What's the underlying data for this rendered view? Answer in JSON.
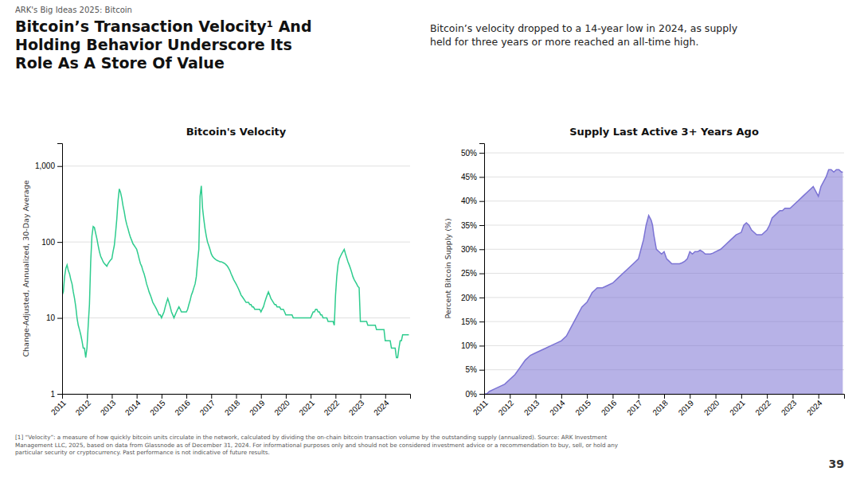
{
  "title": "Bitcoin’s Transaction Velocity¹ And\nHolding Behavior Underscore Its\nRole As A Store Of Value",
  "subtitle": "Bitcoin’s velocity dropped to a 14-year low in 2024, as supply\nheld for three years or more reached an all-time high.",
  "annotations": [
    "ARK's Big Ideas 2025: Bitcoin",
    "[1] “Velocity”: a measure of how quickly bitcoin units circulate in the network, calculated by dividing the on-chain bitcoin transaction volume by the outstanding supply (annualized). Source: ARK Investment\nManagement LLC, 2025, based on data from Glassnode as of December 31, 2024. For informational purposes only and should not be considered investment advice or a recommendation to buy, sell, or hold any\nparticular security or cryptocurrency. Past performance is not indicative of future results.",
    "39"
  ],
  "chart_data": [
    {
      "type": "line",
      "title": "Bitcoin's Velocity",
      "y_label": "Change-Adjusted, Annualized, 30-Day Average",
      "color": "#2ecc8e",
      "log": "y",
      "grid": true,
      "xlim": [
        2011,
        2025
      ],
      "xticks": [
        2011,
        2012,
        2013,
        2014,
        2015,
        2016,
        2017,
        2018,
        2019,
        2020,
        2021,
        2022,
        2023,
        2024
      ],
      "ylim": [
        1,
        2000
      ],
      "yticks": [
        1,
        10,
        100,
        {
          "value": 1000,
          "label": "1,000"
        }
      ],
      "x": [
        2011.0,
        2011.05,
        2011.1,
        2011.15,
        2011.2,
        2011.25,
        2011.3,
        2011.35,
        2011.4,
        2011.45,
        2011.5,
        2011.55,
        2011.6,
        2011.65,
        2011.7,
        2011.75,
        2011.8,
        2011.85,
        2011.9,
        2011.95,
        2012.0,
        2012.05,
        2012.1,
        2012.15,
        2012.2,
        2012.25,
        2012.3,
        2012.35,
        2012.4,
        2012.45,
        2012.5,
        2012.55,
        2012.6,
        2012.65,
        2012.7,
        2012.75,
        2012.8,
        2012.85,
        2012.9,
        2012.95,
        2013.0,
        2013.05,
        2013.1,
        2013.15,
        2013.2,
        2013.25,
        2013.3,
        2013.35,
        2013.4,
        2013.45,
        2013.5,
        2013.55,
        2013.6,
        2013.65,
        2013.7,
        2013.75,
        2013.8,
        2013.85,
        2013.9,
        2013.95,
        2014.0,
        2014.05,
        2014.1,
        2014.15,
        2014.2,
        2014.25,
        2014.3,
        2014.35,
        2014.4,
        2014.45,
        2014.5,
        2014.55,
        2014.6,
        2014.65,
        2014.7,
        2014.75,
        2014.8,
        2014.85,
        2014.9,
        2014.95,
        2015.0,
        2015.05,
        2015.1,
        2015.15,
        2015.2,
        2015.25,
        2015.3,
        2015.35,
        2015.4,
        2015.45,
        2015.5,
        2015.55,
        2015.6,
        2015.65,
        2015.7,
        2015.75,
        2015.8,
        2015.85,
        2015.9,
        2015.95,
        2016.0,
        2016.05,
        2016.1,
        2016.15,
        2016.2,
        2016.25,
        2016.3,
        2016.35,
        2016.4,
        2016.45,
        2016.5,
        2016.55,
        2016.6,
        2016.65,
        2016.7,
        2016.75,
        2016.8,
        2016.85,
        2016.9,
        2016.95,
        2017.0,
        2017.05,
        2017.1,
        2017.15,
        2017.2,
        2017.25,
        2017.3,
        2017.35,
        2017.4,
        2017.45,
        2017.5,
        2017.55,
        2017.6,
        2017.65,
        2017.7,
        2017.75,
        2017.8,
        2017.85,
        2017.9,
        2017.95,
        2018.0,
        2018.05,
        2018.1,
        2018.15,
        2018.2,
        2018.25,
        2018.3,
        2018.35,
        2018.4,
        2018.45,
        2018.5,
        2018.55,
        2018.6,
        2018.65,
        2018.7,
        2018.75,
        2018.8,
        2018.85,
        2018.9,
        2018.95,
        2019.0,
        2019.05,
        2019.1,
        2019.15,
        2019.2,
        2019.25,
        2019.3,
        2019.35,
        2019.4,
        2019.45,
        2019.5,
        2019.55,
        2019.6,
        2019.65,
        2019.7,
        2019.75,
        2019.8,
        2019.85,
        2019.9,
        2019.95,
        2020.0,
        2020.05,
        2020.1,
        2020.15,
        2020.2,
        2020.25,
        2020.3,
        2020.35,
        2020.4,
        2020.45,
        2020.5,
        2020.55,
        2020.6,
        2020.65,
        2020.7,
        2020.75,
        2020.8,
        2020.85,
        2020.9,
        2020.95,
        2021.0,
        2021.05,
        2021.1,
        2021.15,
        2021.2,
        2021.25,
        2021.3,
        2021.35,
        2021.4,
        2021.45,
        2021.5,
        2021.55,
        2021.6,
        2021.65,
        2021.7,
        2021.75,
        2021.8,
        2021.85,
        2021.9,
        2021.95,
        2022.0,
        2022.05,
        2022.1,
        2022.15,
        2022.2,
        2022.25,
        2022.3,
        2022.35,
        2022.4,
        2022.45,
        2022.5,
        2022.55,
        2022.6,
        2022.65,
        2022.7,
        2022.75,
        2022.8,
        2022.85,
        2022.9,
        2022.95,
        2023.0,
        2023.05,
        2023.1,
        2023.15,
        2023.2,
        2023.25,
        2023.3,
        2023.35,
        2023.4,
        2023.45,
        2023.5,
        2023.55,
        2023.6,
        2023.65,
        2023.7,
        2023.75,
        2023.8,
        2023.85,
        2023.9,
        2023.95,
        2024.0,
        2024.05,
        2024.1,
        2024.15,
        2024.2,
        2024.25,
        2024.3,
        2024.35,
        2024.4,
        2024.45,
        2024.5,
        2024.55,
        2024.6,
        2024.65,
        2024.7,
        2024.75,
        2024.8,
        2024.85,
        2024.9,
        2024.95
      ],
      "values": [
        20,
        22,
        35,
        45,
        50,
        42,
        38,
        32,
        28,
        22,
        18,
        14,
        10,
        8,
        7,
        6,
        5,
        4,
        4,
        3,
        4,
        8,
        15,
        55,
        120,
        160,
        155,
        130,
        110,
        90,
        75,
        65,
        60,
        55,
        52,
        50,
        48,
        52,
        55,
        58,
        60,
        75,
        90,
        130,
        200,
        350,
        500,
        450,
        380,
        300,
        250,
        200,
        170,
        150,
        130,
        115,
        105,
        95,
        90,
        85,
        80,
        70,
        60,
        52,
        48,
        42,
        38,
        33,
        28,
        25,
        22,
        20,
        18,
        16,
        15,
        14,
        13,
        12,
        11,
        11,
        10,
        11,
        12,
        14,
        16,
        18,
        16,
        14,
        12,
        11,
        10,
        11,
        12,
        13,
        14,
        13,
        12,
        12,
        12,
        12,
        12,
        13,
        15,
        17,
        20,
        22,
        25,
        28,
        35,
        55,
        80,
        400,
        550,
        280,
        200,
        150,
        120,
        100,
        90,
        80,
        70,
        65,
        62,
        60,
        58,
        57,
        56,
        55,
        55,
        54,
        53,
        52,
        50,
        48,
        45,
        42,
        38,
        35,
        32,
        30,
        28,
        26,
        24,
        22,
        20,
        19,
        18,
        17,
        16,
        16,
        16,
        15,
        15,
        14,
        14,
        13,
        13,
        13,
        13,
        13,
        12,
        13,
        14,
        16,
        18,
        20,
        22,
        20,
        18,
        17,
        16,
        15,
        15,
        14,
        14,
        14,
        13,
        13,
        13,
        12,
        11,
        11,
        11,
        11,
        11,
        11,
        10,
        10,
        10,
        10,
        10,
        10,
        10,
        10,
        10,
        10,
        10,
        10,
        10,
        10,
        10,
        11,
        12,
        12,
        13,
        13,
        12,
        12,
        11,
        11,
        10,
        10,
        10,
        10,
        9,
        9,
        9,
        9,
        9,
        8,
        20,
        35,
        50,
        60,
        65,
        70,
        75,
        80,
        70,
        62,
        55,
        50,
        45,
        40,
        35,
        32,
        30,
        28,
        26,
        25,
        9,
        9,
        9,
        9,
        9,
        9,
        8,
        8,
        8,
        8,
        8,
        8,
        8,
        7,
        7,
        7,
        7,
        7,
        7,
        7,
        5,
        5,
        5,
        5,
        5,
        4,
        4,
        4,
        4,
        3,
        3,
        4,
        5,
        5,
        6,
        6,
        6,
        6,
        6,
        6
      ]
    },
    {
      "type": "area",
      "title": "Supply Last Active 3+ Years Ago",
      "y_label": "Percent Bitcoin Supply (%)",
      "color": "#7b73d4",
      "grid": true,
      "xlim": [
        2011,
        2025
      ],
      "xticks": [
        2011,
        2012,
        2013,
        2014,
        2015,
        2016,
        2017,
        2018,
        2019,
        2020,
        2021,
        2022,
        2023,
        2024
      ],
      "ylim": [
        0,
        52
      ],
      "yticks": [
        {
          "value": 0,
          "label": "0%"
        },
        {
          "value": 5,
          "label": "5%"
        },
        {
          "value": 10,
          "label": "10%"
        },
        {
          "value": 15,
          "label": "15%"
        },
        {
          "value": 20,
          "label": "20%"
        },
        {
          "value": 25,
          "label": "25%"
        },
        {
          "value": 30,
          "label": "30%"
        },
        {
          "value": 35,
          "label": "35%"
        },
        {
          "value": 40,
          "label": "40%"
        },
        {
          "value": 45,
          "label": "45%"
        },
        {
          "value": 50,
          "label": "50%"
        }
      ],
      "x": [
        2011.0,
        2011.1,
        2011.2,
        2011.4,
        2011.6,
        2011.8,
        2012.0,
        2012.2,
        2012.4,
        2012.6,
        2012.8,
        2013.0,
        2013.2,
        2013.4,
        2013.6,
        2013.8,
        2014.0,
        2014.2,
        2014.4,
        2014.6,
        2014.8,
        2015.0,
        2015.1,
        2015.2,
        2015.3,
        2015.4,
        2015.5,
        2015.6,
        2015.8,
        2016.0,
        2016.2,
        2016.4,
        2016.6,
        2016.8,
        2017.0,
        2017.1,
        2017.2,
        2017.3,
        2017.4,
        2017.45,
        2017.5,
        2017.55,
        2017.6,
        2017.7,
        2017.8,
        2017.9,
        2018.0,
        2018.1,
        2018.2,
        2018.3,
        2018.4,
        2018.5,
        2018.6,
        2018.7,
        2018.8,
        2018.9,
        2019.0,
        2019.1,
        2019.2,
        2019.3,
        2019.4,
        2019.5,
        2019.6,
        2019.7,
        2019.8,
        2019.9,
        2020.0,
        2020.2,
        2020.4,
        2020.6,
        2020.8,
        2021.0,
        2021.1,
        2021.2,
        2021.3,
        2021.4,
        2021.5,
        2021.6,
        2021.7,
        2021.8,
        2021.9,
        2022.0,
        2022.1,
        2022.2,
        2022.3,
        2022.4,
        2022.5,
        2022.6,
        2022.7,
        2022.8,
        2022.9,
        2023.0,
        2023.2,
        2023.4,
        2023.6,
        2023.8,
        2024.0,
        2024.1,
        2024.2,
        2024.3,
        2024.4,
        2024.5,
        2024.6,
        2024.7,
        2024.8,
        2024.9,
        2024.95
      ],
      "values": [
        0.0,
        0.0,
        0.5,
        1.0,
        1.5,
        2.0,
        3.0,
        4.0,
        5.5,
        7.0,
        8.0,
        8.5,
        9.0,
        9.5,
        10.0,
        10.5,
        11.0,
        12.0,
        14.0,
        16.0,
        18.0,
        19.0,
        20.0,
        21.0,
        21.5,
        22.0,
        22.0,
        22.0,
        22.5,
        23.0,
        24.0,
        25.0,
        26.0,
        27.0,
        28.0,
        30.0,
        32.0,
        35.0,
        37.0,
        36.5,
        36.0,
        35.0,
        33.0,
        30.0,
        29.5,
        29.0,
        29.5,
        28.0,
        27.5,
        27.0,
        27.0,
        27.0,
        27.0,
        27.2,
        27.5,
        28.0,
        29.5,
        29.0,
        29.5,
        29.5,
        29.8,
        29.5,
        29.0,
        29.0,
        29.0,
        29.2,
        29.5,
        30.0,
        31.0,
        32.0,
        33.0,
        33.5,
        35.0,
        35.5,
        35.0,
        34.0,
        33.5,
        33.0,
        33.0,
        33.0,
        33.5,
        34.0,
        35.0,
        36.5,
        37.0,
        37.5,
        38.0,
        38.0,
        38.5,
        38.5,
        38.5,
        39.0,
        40.0,
        41.0,
        42.0,
        43.0,
        41.0,
        43.0,
        44.0,
        45.0,
        46.5,
        46.5,
        46.0,
        46.5,
        46.5,
        46.0,
        46.0
      ]
    }
  ]
}
